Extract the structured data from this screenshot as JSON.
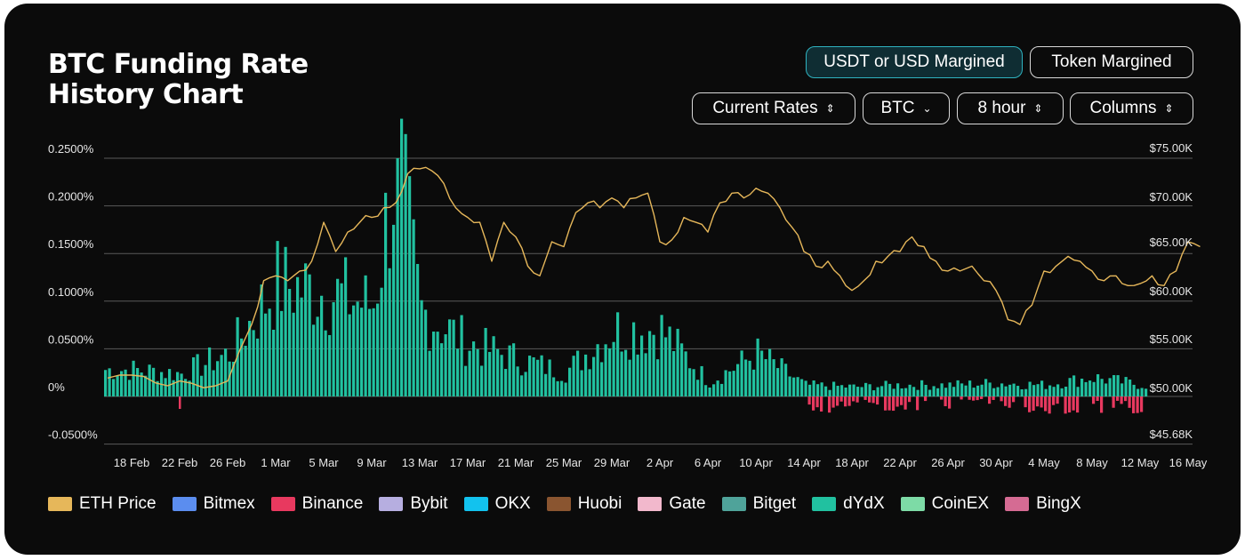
{
  "header": {
    "title_line1": "BTC Funding Rate",
    "title_line2": "History Chart"
  },
  "toggles": {
    "usdt_label": "USDT or USD Margined",
    "token_label": "Token Margined"
  },
  "selectors": {
    "rates": "Current Rates",
    "coin": "BTC",
    "interval": "8 hour",
    "chart_type": "Columns"
  },
  "legend": [
    {
      "name": "ETH Price",
      "color": "#e6b75a"
    },
    {
      "name": "Bitmex",
      "color": "#5b8def"
    },
    {
      "name": "Binance",
      "color": "#e8395f"
    },
    {
      "name": "Bybit",
      "color": "#b6aee0"
    },
    {
      "name": "OKX",
      "color": "#12c2ee"
    },
    {
      "name": "Huobi",
      "color": "#8a5530"
    },
    {
      "name": "Gate",
      "color": "#f2b8cc"
    },
    {
      "name": "Bitget",
      "color": "#4fa39a"
    },
    {
      "name": "dYdX",
      "color": "#21c1a0"
    },
    {
      "name": "CoinEX",
      "color": "#7ddba6"
    },
    {
      "name": "BingX",
      "color": "#d56b93"
    }
  ],
  "chart_data": {
    "type": "bar",
    "x_tick_labels": [
      "18 Feb",
      "22 Feb",
      "26 Feb",
      "1 Mar",
      "5 Mar",
      "9 Mar",
      "13 Mar",
      "17 Mar",
      "21 Mar",
      "25 Mar",
      "29 Mar",
      "2 Apr",
      "6 Apr",
      "10 Apr",
      "14 Apr",
      "18 Apr",
      "22 Apr",
      "26 Apr",
      "30 Apr",
      "4 May",
      "8 May",
      "12 May",
      "16 May"
    ],
    "y_left_ticks": [
      "0.2500%",
      "0.2000%",
      "0.1500%",
      "0.1000%",
      "0.0500%",
      "0%",
      "-0.0500%"
    ],
    "y_left_values": [
      0.25,
      0.2,
      0.15,
      0.1,
      0.05,
      0,
      -0.05
    ],
    "y_left_range": [
      -0.05,
      0.25
    ],
    "y_right_ticks": [
      "$75.00K",
      "$70.00K",
      "$65.00K",
      "$60.00K",
      "$55.00K",
      "$50.00K",
      "$45.68K"
    ],
    "y_right_values": [
      75000,
      70000,
      65000,
      60000,
      55000,
      50000,
      45680
    ],
    "y_right_range": [
      45680,
      75000
    ],
    "grid": true,
    "legend_position": "bottom",
    "funding_rate_series_name": "dYdX",
    "negative_series_name": "Binance",
    "price_series_name": "ETH Price",
    "funding_rate_weekly_anchors_percent": [
      {
        "date": "18 Feb",
        "value": 0.028
      },
      {
        "date": "22 Feb",
        "value": 0.024
      },
      {
        "date": "26 Feb",
        "value": 0.045
      },
      {
        "date": "1 Mar",
        "value": 0.118
      },
      {
        "date": "5 Mar",
        "value": 0.11
      },
      {
        "date": "9 Mar",
        "value": 0.095
      },
      {
        "date": "11 Mar",
        "value": 0.25
      },
      {
        "date": "13 Mar",
        "value": 0.09
      },
      {
        "date": "17 Mar",
        "value": 0.055
      },
      {
        "date": "21 Mar",
        "value": 0.04
      },
      {
        "date": "25 Mar",
        "value": 0.025
      },
      {
        "date": "29 Mar",
        "value": 0.07
      },
      {
        "date": "2 Apr",
        "value": 0.07
      },
      {
        "date": "6 Apr",
        "value": 0.015
      },
      {
        "date": "10 Apr",
        "value": 0.045
      },
      {
        "date": "14 Apr",
        "value": 0.012
      },
      {
        "date": "18 Apr",
        "value": 0.01
      },
      {
        "date": "22 Apr",
        "value": 0.012
      },
      {
        "date": "26 Apr",
        "value": 0.012
      },
      {
        "date": "30 Apr",
        "value": 0.014
      },
      {
        "date": "4 May",
        "value": 0.012
      },
      {
        "date": "8 May",
        "value": 0.02
      },
      {
        "date": "12 May",
        "value": 0.012
      },
      {
        "date": "16 May",
        "value": 0.013
      }
    ],
    "negative_rate_weekly_anchors_percent": [
      {
        "date": "14 Apr",
        "value": -0.012
      },
      {
        "date": "18 Apr",
        "value": -0.008
      },
      {
        "date": "22 Apr",
        "value": -0.01
      },
      {
        "date": "26 Apr",
        "value": -0.008
      },
      {
        "date": "30 Apr",
        "value": -0.005
      },
      {
        "date": "4 May",
        "value": -0.015
      },
      {
        "date": "8 May",
        "value": -0.01
      },
      {
        "date": "12 May",
        "value": -0.012
      },
      {
        "date": "16 May",
        "value": -0.015
      }
    ],
    "eth_price": [
      {
        "date": "16 Feb",
        "value": 51500
      },
      {
        "date": "18 Feb",
        "value": 51800
      },
      {
        "date": "20 Feb",
        "value": 51000
      },
      {
        "date": "22 Feb",
        "value": 51200
      },
      {
        "date": "24 Feb",
        "value": 50500
      },
      {
        "date": "26 Feb",
        "value": 51200
      },
      {
        "date": "28 Feb",
        "value": 57000
      },
      {
        "date": "29 Feb",
        "value": 61500
      },
      {
        "date": "1 Mar",
        "value": 62000
      },
      {
        "date": "2 Mar",
        "value": 61500
      },
      {
        "date": "3 Mar",
        "value": 62500
      },
      {
        "date": "4 Mar",
        "value": 63500
      },
      {
        "date": "5 Mar",
        "value": 67500
      },
      {
        "date": "6 Mar",
        "value": 64500
      },
      {
        "date": "7 Mar",
        "value": 66500
      },
      {
        "date": "8 Mar",
        "value": 67500
      },
      {
        "date": "9 Mar",
        "value": 68000
      },
      {
        "date": "10 Mar",
        "value": 69000
      },
      {
        "date": "11 Mar",
        "value": 69500
      },
      {
        "date": "12 Mar",
        "value": 72500
      },
      {
        "date": "13 Mar",
        "value": 73000
      },
      {
        "date": "14 Mar",
        "value": 72800
      },
      {
        "date": "15 Mar",
        "value": 71500
      },
      {
        "date": "16 Mar",
        "value": 69000
      },
      {
        "date": "17 Mar",
        "value": 68000
      },
      {
        "date": "18 Mar",
        "value": 67500
      },
      {
        "date": "19 Mar",
        "value": 63500
      },
      {
        "date": "20 Mar",
        "value": 67500
      },
      {
        "date": "21 Mar",
        "value": 66000
      },
      {
        "date": "22 Mar",
        "value": 63000
      },
      {
        "date": "23 Mar",
        "value": 62000
      },
      {
        "date": "24 Mar",
        "value": 65500
      },
      {
        "date": "25 Mar",
        "value": 65000
      },
      {
        "date": "26 Mar",
        "value": 68500
      },
      {
        "date": "27 Mar",
        "value": 69500
      },
      {
        "date": "28 Mar",
        "value": 69000
      },
      {
        "date": "29 Mar",
        "value": 70000
      },
      {
        "date": "30 Mar",
        "value": 69000
      },
      {
        "date": "31 Mar",
        "value": 70000
      },
      {
        "date": "1 Apr",
        "value": 70500
      },
      {
        "date": "2 Apr",
        "value": 65500
      },
      {
        "date": "3 Apr",
        "value": 65700
      },
      {
        "date": "4 Apr",
        "value": 68000
      },
      {
        "date": "5 Apr",
        "value": 67500
      },
      {
        "date": "6 Apr",
        "value": 66500
      },
      {
        "date": "7 Apr",
        "value": 69500
      },
      {
        "date": "8 Apr",
        "value": 70500
      },
      {
        "date": "9 Apr",
        "value": 70000
      },
      {
        "date": "10 Apr",
        "value": 71000
      },
      {
        "date": "11 Apr",
        "value": 70500
      },
      {
        "date": "12 Apr",
        "value": 69000
      },
      {
        "date": "13 Apr",
        "value": 67000
      },
      {
        "date": "14 Apr",
        "value": 64500
      },
      {
        "date": "15 Apr",
        "value": 63000
      },
      {
        "date": "16 Apr",
        "value": 63500
      },
      {
        "date": "17 Apr",
        "value": 62000
      },
      {
        "date": "18 Apr",
        "value": 60500
      },
      {
        "date": "19 Apr",
        "value": 61500
      },
      {
        "date": "20 Apr",
        "value": 63500
      },
      {
        "date": "21 Apr",
        "value": 64000
      },
      {
        "date": "22 Apr",
        "value": 64500
      },
      {
        "date": "23 Apr",
        "value": 66000
      },
      {
        "date": "24 Apr",
        "value": 65000
      },
      {
        "date": "25 Apr",
        "value": 63500
      },
      {
        "date": "26 Apr",
        "value": 62500
      },
      {
        "date": "27 Apr",
        "value": 62500
      },
      {
        "date": "28 Apr",
        "value": 63000
      },
      {
        "date": "29 Apr",
        "value": 61500
      },
      {
        "date": "30 Apr",
        "value": 60500
      },
      {
        "date": "1 May",
        "value": 57500
      },
      {
        "date": "2 May",
        "value": 57000
      },
      {
        "date": "3 May",
        "value": 59000
      },
      {
        "date": "4 May",
        "value": 62500
      },
      {
        "date": "5 May",
        "value": 63000
      },
      {
        "date": "6 May",
        "value": 64000
      },
      {
        "date": "7 May",
        "value": 63500
      },
      {
        "date": "8 May",
        "value": 62500
      },
      {
        "date": "9 May",
        "value": 61500
      },
      {
        "date": "10 May",
        "value": 62000
      },
      {
        "date": "11 May",
        "value": 61000
      },
      {
        "date": "12 May",
        "value": 61200
      },
      {
        "date": "13 May",
        "value": 62000
      },
      {
        "date": "14 May",
        "value": 61000
      },
      {
        "date": "15 May",
        "value": 62500
      },
      {
        "date": "16 May",
        "value": 65500
      },
      {
        "date": "17 May",
        "value": 65000
      }
    ]
  }
}
